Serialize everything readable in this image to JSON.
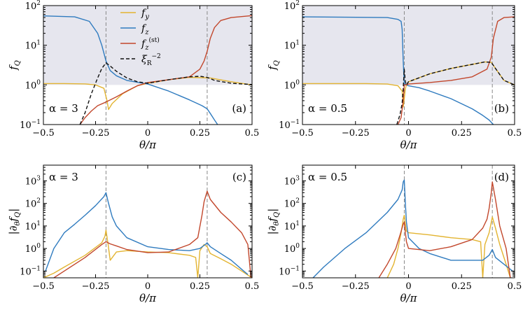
{
  "chart_data": [
    {
      "panel": "(a)",
      "type": "line",
      "yscale": "log",
      "alpha_label": "α = 3",
      "xlabel": "θ/π",
      "ylabel": "f_Q",
      "xlim": [
        -0.5,
        0.5
      ],
      "ylim": [
        0.1,
        100
      ],
      "xticks": [
        "-0.5",
        "-0.25",
        "0",
        "0.25",
        "0.5"
      ],
      "yticks": [
        "10⁻¹",
        "10⁰",
        "10¹",
        "10²"
      ],
      "shaded_region": "y ≥ 1",
      "vlines": [
        -0.2,
        0.285
      ],
      "legend": {
        "placement": "top-center",
        "entries": [
          "f_y",
          "f_z",
          "f_z^(st)",
          "ξ_R^-2"
        ]
      },
      "series": [
        {
          "name": "f_y",
          "color": "#e3b431",
          "style": "solid",
          "x": [
            -0.5,
            -0.4,
            -0.3,
            -0.25,
            -0.21,
            -0.195,
            -0.188,
            -0.17,
            -0.12,
            -0.05,
            0.0,
            0.1,
            0.2,
            0.3,
            0.4,
            0.5
          ],
          "y": [
            1.08,
            1.08,
            1.06,
            1.0,
            0.82,
            0.4,
            0.24,
            0.34,
            0.6,
            0.95,
            1.1,
            1.35,
            1.55,
            1.5,
            1.2,
            1.0
          ]
        },
        {
          "name": "f_z",
          "color": "#2f7bbf",
          "style": "solid",
          "x": [
            -0.5,
            -0.35,
            -0.28,
            -0.24,
            -0.22,
            -0.2,
            -0.18,
            -0.15,
            -0.1,
            0.0,
            0.1,
            0.2,
            0.26,
            0.285,
            0.3,
            0.32,
            0.335
          ],
          "y": [
            55,
            52,
            40,
            20,
            10,
            4,
            2.3,
            1.7,
            1.3,
            1.05,
            0.7,
            0.42,
            0.3,
            0.25,
            0.19,
            0.13,
            0.1
          ]
        },
        {
          "name": "f_z^(st)",
          "color": "#c2472c",
          "style": "solid",
          "x": [
            -0.325,
            -0.3,
            -0.27,
            -0.24,
            -0.2,
            -0.15,
            -0.1,
            -0.05,
            0.0,
            0.1,
            0.2,
            0.25,
            0.27,
            0.285,
            0.3,
            0.32,
            0.35,
            0.4,
            0.5
          ],
          "y": [
            0.1,
            0.15,
            0.22,
            0.3,
            0.37,
            0.5,
            0.7,
            0.95,
            1.15,
            1.35,
            1.6,
            2.5,
            4.0,
            7.0,
            15.0,
            28.0,
            42.0,
            50.0,
            56.0
          ]
        },
        {
          "name": "ξ_R^-2",
          "color": "#111111",
          "style": "dashed",
          "x": [
            -0.325,
            -0.3,
            -0.27,
            -0.24,
            -0.22,
            -0.2,
            -0.18,
            -0.15,
            -0.1,
            -0.05,
            0.0,
            0.1,
            0.2,
            0.25,
            0.285,
            0.32,
            0.4,
            0.5
          ],
          "y": [
            0.1,
            0.2,
            0.6,
            1.5,
            2.6,
            3.6,
            3.0,
            2.2,
            1.5,
            1.2,
            1.1,
            1.35,
            1.6,
            1.65,
            1.55,
            1.3,
            1.1,
            1.02
          ]
        }
      ]
    },
    {
      "panel": "(b)",
      "type": "line",
      "yscale": "log",
      "alpha_label": "α = 0.5",
      "xlabel": "θ/π",
      "ylabel": "f_Q",
      "xlim": [
        -0.5,
        0.5
      ],
      "ylim": [
        0.1,
        100
      ],
      "xticks": [
        "-0.5",
        "-0.25",
        "0",
        "0.25",
        "0.5"
      ],
      "yticks": [
        "10⁻¹",
        "10⁰",
        "10¹",
        "10²"
      ],
      "shaded_region": "y ≥ 1",
      "vlines": [
        -0.02,
        0.395
      ],
      "series": [
        {
          "name": "f_y",
          "color": "#e3b431",
          "style": "solid",
          "x": [
            -0.5,
            -0.2,
            -0.1,
            -0.05,
            -0.03,
            -0.025,
            -0.02,
            -0.015,
            -0.01,
            0.0,
            0.1,
            0.2,
            0.3,
            0.36,
            0.39,
            0.41,
            0.45,
            0.5
          ],
          "y": [
            1.08,
            1.08,
            1.05,
            0.95,
            0.7,
            0.28,
            0.45,
            0.8,
            1.0,
            1.2,
            1.9,
            2.6,
            3.3,
            3.8,
            3.7,
            2.6,
            1.3,
            1.0
          ]
        },
        {
          "name": "f_z",
          "color": "#2f7bbf",
          "style": "solid",
          "x": [
            -0.5,
            -0.1,
            -0.05,
            -0.035,
            -0.03,
            -0.025,
            -0.02,
            -0.01,
            0.0,
            0.05,
            0.1,
            0.2,
            0.3,
            0.35,
            0.38,
            0.4
          ],
          "y": [
            52,
            50,
            45,
            40,
            25,
            4,
            1.1,
            1.0,
            0.95,
            0.85,
            0.7,
            0.45,
            0.25,
            0.17,
            0.13,
            0.1
          ]
        },
        {
          "name": "f_z^(st)",
          "color": "#c2472c",
          "style": "solid",
          "x": [
            -0.05,
            -0.035,
            -0.025,
            -0.02,
            -0.01,
            0.0,
            0.1,
            0.2,
            0.3,
            0.37,
            0.39,
            0.4,
            0.42,
            0.45,
            0.5
          ],
          "y": [
            0.1,
            0.15,
            0.4,
            1.0,
            1.0,
            1.05,
            1.15,
            1.3,
            1.6,
            2.5,
            5.0,
            15.0,
            40.0,
            50.0,
            52.0
          ]
        },
        {
          "name": "ξ_R^-2",
          "color": "#111111",
          "style": "dashed",
          "x": [
            -0.055,
            -0.04,
            -0.03,
            -0.025,
            -0.02,
            -0.015,
            -0.01,
            0.0,
            0.1,
            0.2,
            0.3,
            0.36,
            0.39,
            0.41,
            0.45,
            0.5
          ],
          "y": [
            0.1,
            0.18,
            0.35,
            0.8,
            2.5,
            1.2,
            1.0,
            1.2,
            1.9,
            2.6,
            3.3,
            3.8,
            3.7,
            2.6,
            1.3,
            1.0
          ]
        }
      ]
    },
    {
      "panel": "(c)",
      "type": "line",
      "yscale": "log",
      "alpha_label": "α = 3",
      "xlabel": "θ/π",
      "ylabel": "|∂_θ f_Q|",
      "xlim": [
        -0.5,
        0.5
      ],
      "ylim": [
        0.05,
        5000
      ],
      "xticks": [
        "-0.5",
        "-0.25",
        "0",
        "0.25",
        "0.5"
      ],
      "yticks": [
        "10⁻¹",
        "10⁰",
        "10¹",
        "10²",
        "10³"
      ],
      "vlines": [
        -0.2,
        0.285
      ],
      "series": [
        {
          "name": "f_y",
          "color": "#e3b431",
          "style": "solid",
          "x": [
            -0.5,
            -0.45,
            -0.4,
            -0.3,
            -0.22,
            -0.205,
            -0.2,
            -0.19,
            -0.18,
            -0.15,
            -0.1,
            0.0,
            0.1,
            0.2,
            0.23,
            0.24,
            0.25,
            0.27,
            0.285,
            0.3,
            0.35,
            0.4,
            0.45,
            0.5
          ],
          "y": [
            0.05,
            0.08,
            0.15,
            0.5,
            1.8,
            3.5,
            6.5,
            1.5,
            0.3,
            0.7,
            0.8,
            0.7,
            0.65,
            0.5,
            0.4,
            0.05,
            0.8,
            1.5,
            1.2,
            0.6,
            0.35,
            0.2,
            0.1,
            0.05
          ]
        },
        {
          "name": "f_z",
          "color": "#2f7bbf",
          "style": "solid",
          "x": [
            -0.49,
            -0.45,
            -0.4,
            -0.35,
            -0.3,
            -0.25,
            -0.21,
            -0.2,
            -0.19,
            -0.17,
            -0.15,
            -0.1,
            0.0,
            0.1,
            0.2,
            0.25,
            0.28,
            0.285,
            0.3,
            0.35,
            0.4,
            0.45,
            0.48
          ],
          "y": [
            0.1,
            1.0,
            5.0,
            12,
            30,
            80,
            200,
            300,
            120,
            25,
            10,
            3,
            1.2,
            0.9,
            0.8,
            1.0,
            1.6,
            1.8,
            1.2,
            0.6,
            0.3,
            0.12,
            0.07
          ]
        },
        {
          "name": "f_z^(st)",
          "color": "#c2472c",
          "style": "solid",
          "x": [
            -0.45,
            -0.4,
            -0.3,
            -0.22,
            -0.2,
            -0.18,
            -0.15,
            -0.1,
            0.0,
            0.1,
            0.2,
            0.24,
            0.26,
            0.27,
            0.285,
            0.3,
            0.35,
            0.4,
            0.45,
            0.48,
            0.495
          ],
          "y": [
            0.05,
            0.1,
            0.4,
            1.5,
            2.0,
            1.6,
            1.3,
            0.9,
            0.65,
            0.7,
            1.5,
            3.0,
            30,
            120,
            350,
            150,
            40,
            15,
            5,
            1.5,
            0.05
          ]
        }
      ]
    },
    {
      "panel": "(d)",
      "type": "line",
      "yscale": "log",
      "alpha_label": "α = 0.5",
      "xlabel": "θ/π",
      "ylabel": "|∂_θ f_Q|",
      "xlim": [
        -0.5,
        0.5
      ],
      "ylim": [
        0.05,
        5000
      ],
      "xticks": [
        "-0.5",
        "-0.25",
        "0",
        "0.25",
        "0.5"
      ],
      "yticks": [
        "10⁻¹",
        "10⁰",
        "10¹",
        "10²",
        "10³"
      ],
      "vlines": [
        -0.02,
        0.395
      ],
      "series": [
        {
          "name": "f_y",
          "color": "#e3b431",
          "style": "solid",
          "x": [
            -0.1,
            -0.07,
            -0.05,
            -0.035,
            -0.025,
            -0.02,
            -0.015,
            -0.01,
            0.0,
            0.1,
            0.2,
            0.3,
            0.34,
            0.35,
            0.36,
            0.38,
            0.395,
            0.41,
            0.43,
            0.46,
            0.48
          ],
          "y": [
            0.05,
            0.2,
            1.0,
            5.0,
            20,
            30,
            12,
            6,
            5,
            4,
            3,
            2.5,
            2.0,
            0.05,
            1.5,
            5,
            25,
            8,
            1.5,
            0.2,
            0.05
          ]
        },
        {
          "name": "f_z",
          "color": "#2f7bbf",
          "style": "solid",
          "x": [
            -0.45,
            -0.4,
            -0.3,
            -0.2,
            -0.1,
            -0.05,
            -0.03,
            -0.025,
            -0.02,
            -0.015,
            -0.01,
            0.0,
            0.05,
            0.1,
            0.2,
            0.3,
            0.35,
            0.38,
            0.395,
            0.41,
            0.45,
            0.49
          ],
          "y": [
            0.05,
            0.15,
            1.0,
            5.0,
            40,
            150,
            400,
            900,
            1100,
            100,
            15,
            3,
            1.0,
            0.6,
            0.3,
            0.3,
            0.3,
            0.5,
            0.9,
            0.4,
            0.2,
            0.1
          ]
        },
        {
          "name": "f_z^(st)",
          "color": "#c2472c",
          "style": "solid",
          "x": [
            -0.14,
            -0.1,
            -0.06,
            -0.04,
            -0.025,
            -0.02,
            -0.015,
            -0.01,
            0.0,
            0.1,
            0.2,
            0.3,
            0.35,
            0.37,
            0.38,
            0.39,
            0.395,
            0.41,
            0.43,
            0.46,
            0.48
          ],
          "y": [
            0.05,
            0.2,
            1.0,
            4.0,
            12,
            15,
            5,
            2.0,
            1.0,
            0.8,
            1.2,
            2.5,
            8,
            20,
            60,
            300,
            900,
            150,
            10,
            1.0,
            0.05
          ]
        }
      ]
    }
  ]
}
